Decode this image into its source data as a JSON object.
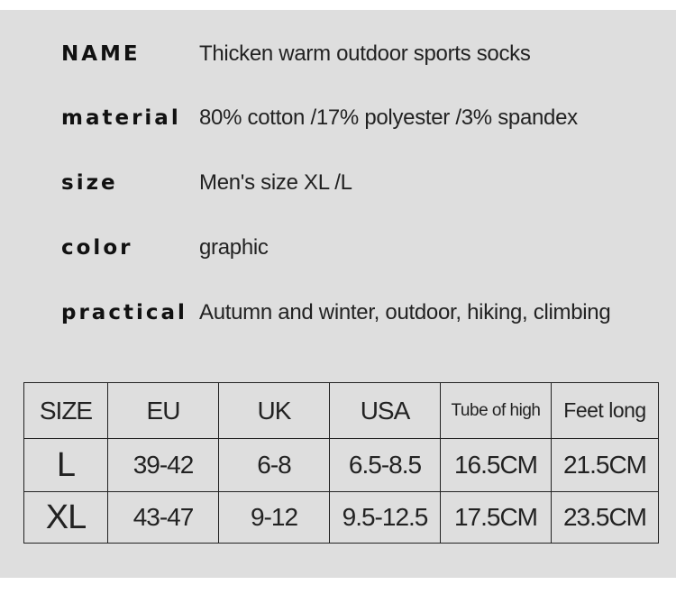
{
  "specs": [
    {
      "label": "NAME",
      "value": "Thicken warm outdoor sports socks"
    },
    {
      "label": "material",
      "value": "80% cotton /17% polyester /3% spandex"
    },
    {
      "label": "size",
      "value": "Men's size XL /L"
    },
    {
      "label": "color",
      "value": "graphic"
    },
    {
      "label": "practical",
      "value": "Autumn and winter, outdoor, hiking, climbing"
    }
  ],
  "size_table": {
    "headers": [
      "SIZE",
      "EU",
      "UK",
      "USA",
      "Tube of high",
      "Feet long"
    ],
    "rows": [
      [
        "L",
        "39-42",
        "6-8",
        "6.5-8.5",
        "16.5CM",
        "21.5CM"
      ],
      [
        "XL",
        "43-47",
        "9-12",
        "9.5-12.5",
        "17.5CM",
        "23.5CM"
      ]
    ]
  }
}
